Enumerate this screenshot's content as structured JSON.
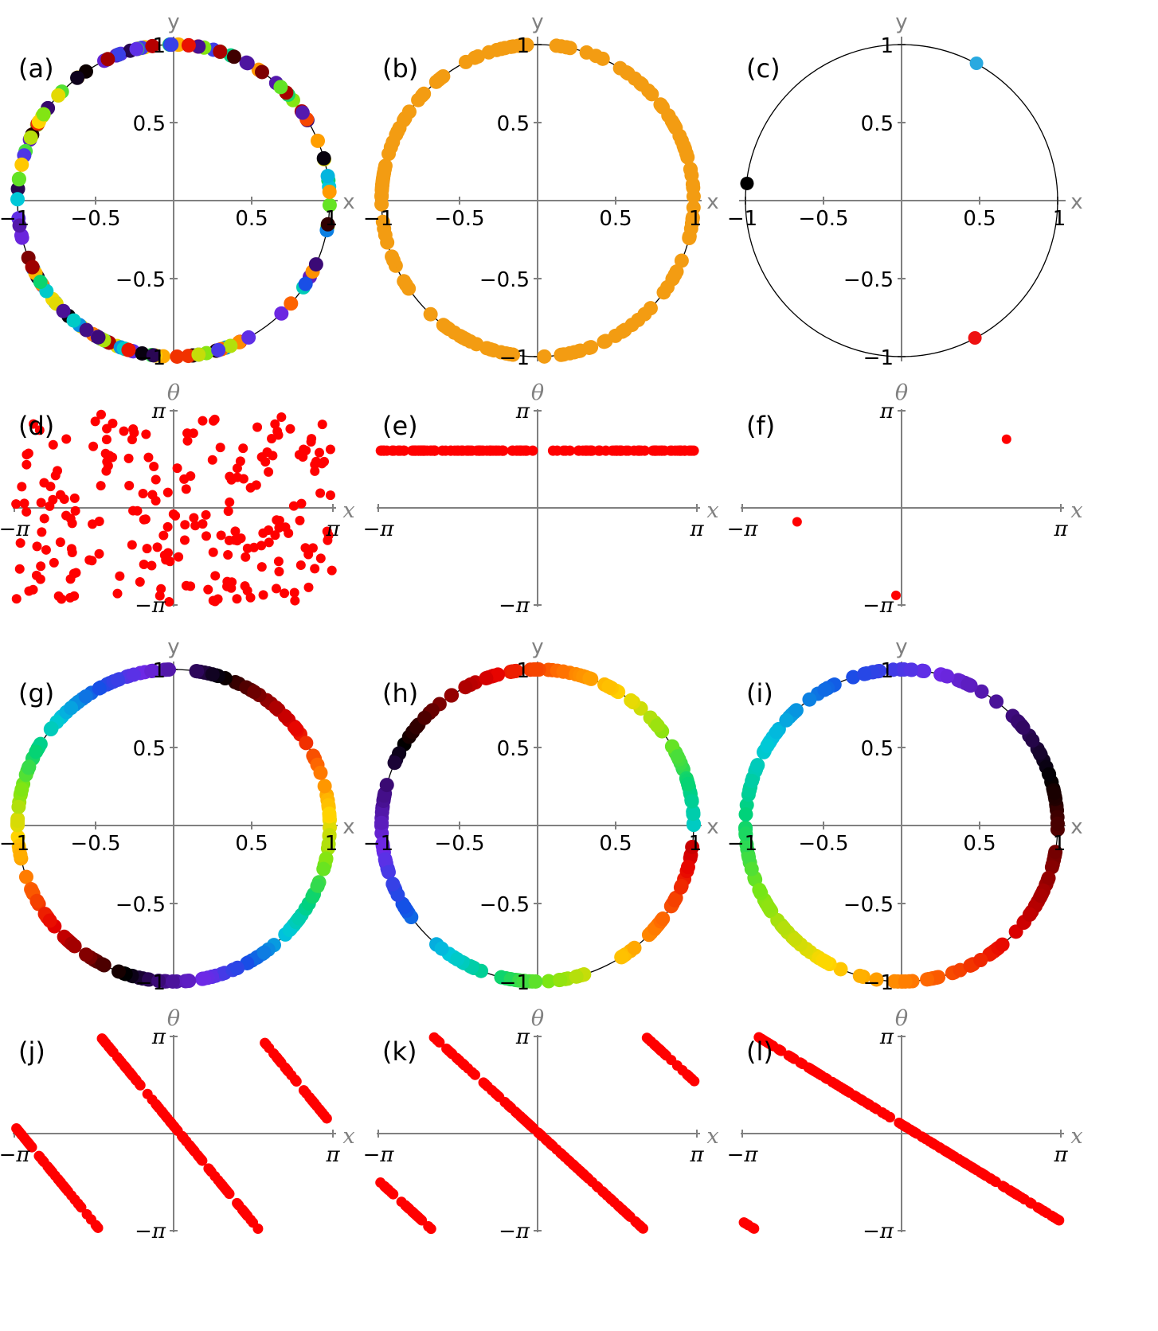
{
  "chart_data": [
    {
      "panel": "a",
      "type": "scatter",
      "label": "(a)",
      "xlabel": "x",
      "ylabel": "y",
      "xlim": [
        -1,
        1
      ],
      "ylim": [
        -1,
        1
      ],
      "x_ticks": [
        "−1",
        "−0.5",
        "0.5",
        "1"
      ],
      "y_ticks": [
        "1",
        "0.5",
        "−0.5",
        "−1"
      ],
      "unit_circle": true,
      "coloring": "random phase colors (rainbow + black)",
      "point_count": 150
    },
    {
      "panel": "b",
      "type": "scatter",
      "label": "(b)",
      "xlabel": "x",
      "ylabel": "y",
      "xlim": [
        -1,
        1
      ],
      "ylim": [
        -1,
        1
      ],
      "x_ticks": [
        "−1",
        "−0.5",
        "0.5",
        "1"
      ],
      "y_ticks": [
        "1",
        "0.5",
        "−0.5",
        "−1"
      ],
      "unit_circle": true,
      "color": "#f39c12",
      "point_count": 150
    },
    {
      "panel": "c",
      "type": "scatter",
      "label": "(c)",
      "xlabel": "x",
      "ylabel": "y",
      "xlim": [
        -1,
        1
      ],
      "ylim": [
        -1,
        1
      ],
      "x_ticks": [
        "−1",
        "−0.5",
        "0.5",
        "1"
      ],
      "y_ticks": [
        "1",
        "0.5",
        "−0.5",
        "−1"
      ],
      "unit_circle": true,
      "points": [
        {
          "x": 0.48,
          "y": 0.88,
          "color": "#29a9e0"
        },
        {
          "x": -0.99,
          "y": 0.11,
          "color": "#000000"
        },
        {
          "x": 0.47,
          "y": -0.88,
          "color": "#ee1111"
        }
      ]
    },
    {
      "panel": "d",
      "type": "scatter",
      "label": "(d)",
      "xlabel": "x",
      "ylabel": "θ",
      "xlim": [
        -3.1416,
        3.1416
      ],
      "ylim": [
        -3.1416,
        3.1416
      ],
      "x_ticks": [
        "−π",
        "π"
      ],
      "y_ticks": [
        "π",
        "−π"
      ],
      "color": "#ff0000",
      "distribution": "uniform random",
      "point_count": 220
    },
    {
      "panel": "e",
      "type": "scatter",
      "label": "(e)",
      "xlabel": "x",
      "ylabel": "θ",
      "xlim": [
        -3.1416,
        3.1416
      ],
      "ylim": [
        -3.1416,
        3.1416
      ],
      "x_ticks": [
        "−π",
        "π"
      ],
      "y_ticks": [
        "π",
        "−π"
      ],
      "color": "#ff0000",
      "theta_constant": 1.85,
      "point_count": 150
    },
    {
      "panel": "f",
      "type": "scatter",
      "label": "(f)",
      "xlabel": "x",
      "ylabel": "θ",
      "xlim": [
        -3.1416,
        3.1416
      ],
      "ylim": [
        -3.1416,
        3.1416
      ],
      "x_ticks": [
        "−π",
        "π"
      ],
      "y_ticks": [
        "π",
        "−π"
      ],
      "color": "#ff0000",
      "points": [
        {
          "x": 2.07,
          "y": 2.22
        },
        {
          "x": -2.06,
          "y": -0.45
        },
        {
          "x": -0.11,
          "y": -2.83
        }
      ]
    },
    {
      "panel": "g",
      "type": "scatter",
      "label": "(g)",
      "xlabel": "x",
      "ylabel": "y",
      "xlim": [
        -1,
        1
      ],
      "ylim": [
        -1,
        1
      ],
      "x_ticks": [
        "−1",
        "−0.5",
        "0.5",
        "1"
      ],
      "y_ticks": [
        "1",
        "0.5",
        "−0.5",
        "−1"
      ],
      "unit_circle": true,
      "coloring": "phase color wraps 2 times around circle",
      "winding": 2,
      "point_count": 200
    },
    {
      "panel": "h",
      "type": "scatter",
      "label": "(h)",
      "xlabel": "x",
      "ylabel": "y",
      "xlim": [
        -1,
        1
      ],
      "ylim": [
        -1,
        1
      ],
      "x_ticks": [
        "−1",
        "−0.5",
        "0.5",
        "1"
      ],
      "y_ticks": [
        "1",
        "0.5",
        "−0.5",
        "−1"
      ],
      "unit_circle": true,
      "coloring": "phase color wraps 1.5 times around circle",
      "winding": 1.5,
      "point_count": 200
    },
    {
      "panel": "i",
      "type": "scatter",
      "label": "(i)",
      "xlabel": "x",
      "ylabel": "y",
      "xlim": [
        -1,
        1
      ],
      "ylim": [
        -1,
        1
      ],
      "x_ticks": [
        "−1",
        "−0.5",
        "0.5",
        "1"
      ],
      "y_ticks": [
        "1",
        "0.5",
        "−0.5",
        "−1"
      ],
      "unit_circle": true,
      "coloring": "phase color wraps 1 time around circle",
      "winding": 1,
      "point_count": 200
    },
    {
      "panel": "j",
      "type": "scatter",
      "label": "(j)",
      "xlabel": "x",
      "ylabel": "θ",
      "xlim": [
        -3.1416,
        3.1416
      ],
      "ylim": [
        -3.1416,
        3.1416
      ],
      "x_ticks": [
        "−π",
        "π"
      ],
      "y_ticks": [
        "π",
        "−π"
      ],
      "color": "#ff0000",
      "relation": "theta = -2*x + c (mod 2π)",
      "slope": -2,
      "point_count": 200
    },
    {
      "panel": "k",
      "type": "scatter",
      "label": "(k)",
      "xlabel": "x",
      "ylabel": "θ",
      "xlim": [
        -3.1416,
        3.1416
      ],
      "ylim": [
        -3.1416,
        3.1416
      ],
      "x_ticks": [
        "−π",
        "π"
      ],
      "y_ticks": [
        "π",
        "−π"
      ],
      "color": "#ff0000",
      "relation": "theta = -1.5*x + c (mod 2π)",
      "slope": -1.5,
      "point_count": 200
    },
    {
      "panel": "l",
      "type": "scatter",
      "label": "(l)",
      "xlabel": "x",
      "ylabel": "θ",
      "xlim": [
        -3.1416,
        3.1416
      ],
      "ylim": [
        -3.1416,
        3.1416
      ],
      "x_ticks": [
        "−π",
        "π"
      ],
      "y_ticks": [
        "π",
        "−π"
      ],
      "color": "#ff0000",
      "relation": "theta = -x + c (mod 2π)",
      "slope": -1,
      "point_count": 200
    }
  ]
}
